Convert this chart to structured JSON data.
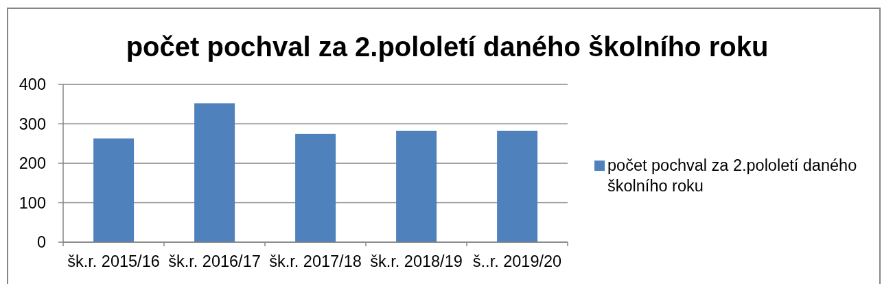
{
  "chart_data": {
    "type": "bar",
    "title": "počet pochval za 2.pololetí daného školního roku",
    "categories": [
      "šk.r. 2015/16",
      "šk.r. 2016/17",
      "šk.r. 2017/18",
      "šk.r. 2018/19",
      "š..r. 2019/20"
    ],
    "series": [
      {
        "name": "počet pochval za 2.pololetí daného školního roku",
        "color": "#4f81bd",
        "values": [
          263,
          352,
          275,
          282,
          282
        ]
      }
    ],
    "ylim": [
      0,
      400
    ],
    "yticks": [
      0,
      100,
      200,
      300,
      400
    ],
    "grid": "y",
    "legend": "right"
  }
}
